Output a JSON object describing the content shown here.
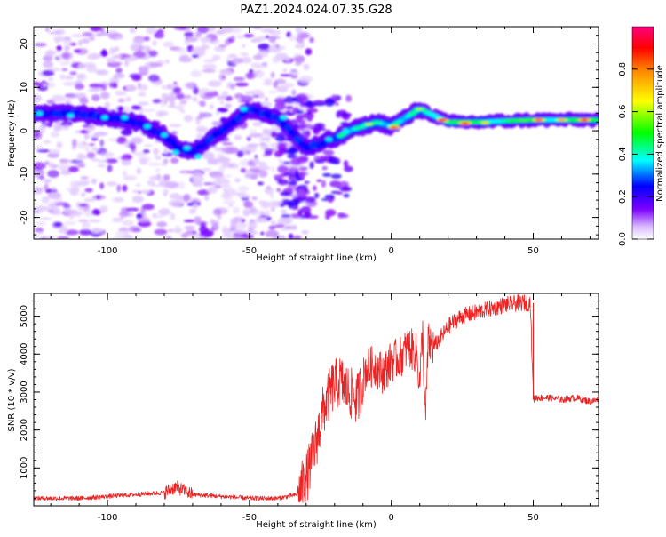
{
  "figure_title": "PAZ1.2024.024.07.35.G28",
  "chart_data": [
    {
      "type": "heatmap",
      "title": "PAZ1.2024.024.07.35.G28",
      "xlabel": "Height of straight line (km)",
      "ylabel": "Frequency (Hz)",
      "xlim": [
        -126,
        73
      ],
      "ylim": [
        -25,
        24
      ],
      "x_ticks": [
        -100,
        -50,
        0,
        50
      ],
      "y_ticks": [
        -20,
        -10,
        0,
        10,
        20
      ],
      "grid": false,
      "colorbar": {
        "label": "Normalized spectral amplitude",
        "range": [
          0,
          1
        ],
        "ticks": [
          0.0,
          0.2,
          0.4,
          0.6,
          0.8
        ],
        "colormap": "hsv-rainbow (purple to red)",
        "colors": [
          "#ffffff",
          "#7f00ff",
          "#0000ff",
          "#00ffff",
          "#00ff00",
          "#ffff00",
          "#ff8000",
          "#ff0000",
          "#ff0080"
        ]
      },
      "ridge_line": {
        "description_points": [
          {
            "x": -125,
            "y": 4
          },
          {
            "x": -110,
            "y": 4
          },
          {
            "x": -100,
            "y": 3
          },
          {
            "x": -90,
            "y": 2
          },
          {
            "x": -80,
            "y": -1
          },
          {
            "x": -75,
            "y": -4
          },
          {
            "x": -70,
            "y": -5
          },
          {
            "x": -50,
            "y": 5
          },
          {
            "x": -40,
            "y": 3
          },
          {
            "x": -30,
            "y": -4
          },
          {
            "x": -20,
            "y": -2
          },
          {
            "x": -15,
            "y": 0
          },
          {
            "x": -10,
            "y": 1
          },
          {
            "x": -5,
            "y": 2
          },
          {
            "x": 0,
            "y": 1
          },
          {
            "x": 10,
            "y": 5
          },
          {
            "x": 20,
            "y": 2
          },
          {
            "x": 30,
            "y": 2
          },
          {
            "x": 50,
            "y": 2.5
          },
          {
            "x": 73,
            "y": 2.5
          }
        ]
      }
    },
    {
      "type": "line",
      "xlabel": "Height of straight line (km)",
      "ylabel": "SNR (10 * v/v)",
      "xlim": [
        -126,
        73
      ],
      "ylim": [
        0,
        5600
      ],
      "x_ticks": [
        -100,
        -50,
        0,
        50
      ],
      "y_ticks": [
        1000,
        2000,
        3000,
        4000,
        5000
      ],
      "grid": false,
      "color": "#ee2222",
      "series": [
        {
          "x": [
            -126,
            -110,
            -100,
            -90,
            -80,
            -76,
            -70,
            -60,
            -50,
            -40,
            -33,
            -30,
            -27,
            -24,
            -21,
            -18,
            -15,
            -12,
            -9,
            -6,
            -3,
            0,
            3,
            6,
            9,
            10,
            11,
            12,
            13,
            15,
            18,
            21,
            25,
            30,
            35,
            40,
            45,
            49,
            50,
            51,
            55,
            60,
            65,
            70,
            73
          ],
          "values": [
            200,
            200,
            250,
            300,
            350,
            500,
            300,
            250,
            200,
            200,
            300,
            700,
            1500,
            2500,
            3100,
            3300,
            3000,
            2800,
            3600,
            3700,
            3500,
            3800,
            3900,
            4200,
            4000,
            3200,
            4600,
            2200,
            4300,
            4200,
            4500,
            4800,
            5000,
            5100,
            5200,
            5300,
            5350,
            5350,
            2800,
            2850,
            2850,
            2800,
            2850,
            2750,
            2800
          ]
        }
      ]
    }
  ]
}
